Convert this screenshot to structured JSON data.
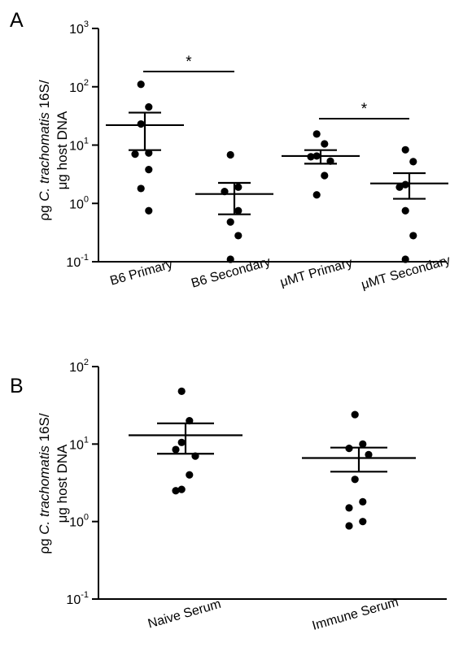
{
  "chart_data": [
    {
      "type": "scatter",
      "panel_label": "A",
      "ylabel_lines": [
        "ρg C. trachomatis 16S/",
        "μg host DNA"
      ],
      "ylabel_italic": "C. trachomatis",
      "yscale": "log",
      "ylim": [
        0.1,
        1000
      ],
      "yticks": [
        {
          "base": "10",
          "exp": "-1"
        },
        {
          "base": "10",
          "exp": "0"
        },
        {
          "base": "10",
          "exp": "1"
        },
        {
          "base": "10",
          "exp": "2"
        },
        {
          "base": "10",
          "exp": "3"
        }
      ],
      "categories": [
        "B6 Primary",
        "B6 Secondary",
        "μMT Primary",
        "μMT Secondary"
      ],
      "groups": [
        {
          "name": "B6 Primary",
          "points": [
            110,
            45,
            23,
            7.3,
            7.0,
            3.8,
            1.8,
            0.75
          ],
          "mean": 22,
          "sem_low": 8.2,
          "sem_high": 36
        },
        {
          "name": "B6 Secondary",
          "points": [
            6.8,
            1.9,
            1.6,
            0.75,
            0.48,
            0.28,
            0.11
          ],
          "mean": 1.45,
          "sem_low": 0.65,
          "sem_high": 2.25
        },
        {
          "name": "μMT Primary",
          "points": [
            15.5,
            10.5,
            6.5,
            6.3,
            5.3,
            3.0,
            1.4
          ],
          "mean": 6.5,
          "sem_low": 4.8,
          "sem_high": 8.2
        },
        {
          "name": "μMT Secondary",
          "points": [
            8.3,
            5.2,
            2.1,
            1.9,
            0.75,
            0.28,
            0.11
          ],
          "mean": 2.2,
          "sem_low": 1.2,
          "sem_high": 3.3
        }
      ],
      "significance": [
        {
          "from": "B6 Primary",
          "to": "B6 Secondary",
          "label": "*"
        },
        {
          "from": "μMT Primary",
          "to": "μMT Secondary",
          "label": "*"
        }
      ]
    },
    {
      "type": "scatter",
      "panel_label": "B",
      "ylabel_lines": [
        "ρg C. trachomatis 16S/",
        "μg host DNA"
      ],
      "ylabel_italic": "C. trachomatis",
      "yscale": "log",
      "ylim": [
        0.1,
        100
      ],
      "yticks": [
        {
          "base": "10",
          "exp": "-1"
        },
        {
          "base": "10",
          "exp": "0"
        },
        {
          "base": "10",
          "exp": "1"
        },
        {
          "base": "10",
          "exp": "2"
        }
      ],
      "categories": [
        "Naive Serum",
        "Immune Serum"
      ],
      "groups": [
        {
          "name": "Naive Serum",
          "points": [
            48,
            20,
            10.5,
            8.5,
            7.0,
            4.0,
            2.6,
            2.5
          ],
          "mean": 13,
          "sem_low": 7.5,
          "sem_high": 18.5
        },
        {
          "name": "Immune Serum",
          "points": [
            24,
            10,
            8.8,
            7.3,
            3.5,
            1.8,
            1.5,
            1.0,
            0.88
          ],
          "mean": 6.6,
          "sem_low": 4.4,
          "sem_high": 9.0
        }
      ],
      "significance": []
    }
  ]
}
